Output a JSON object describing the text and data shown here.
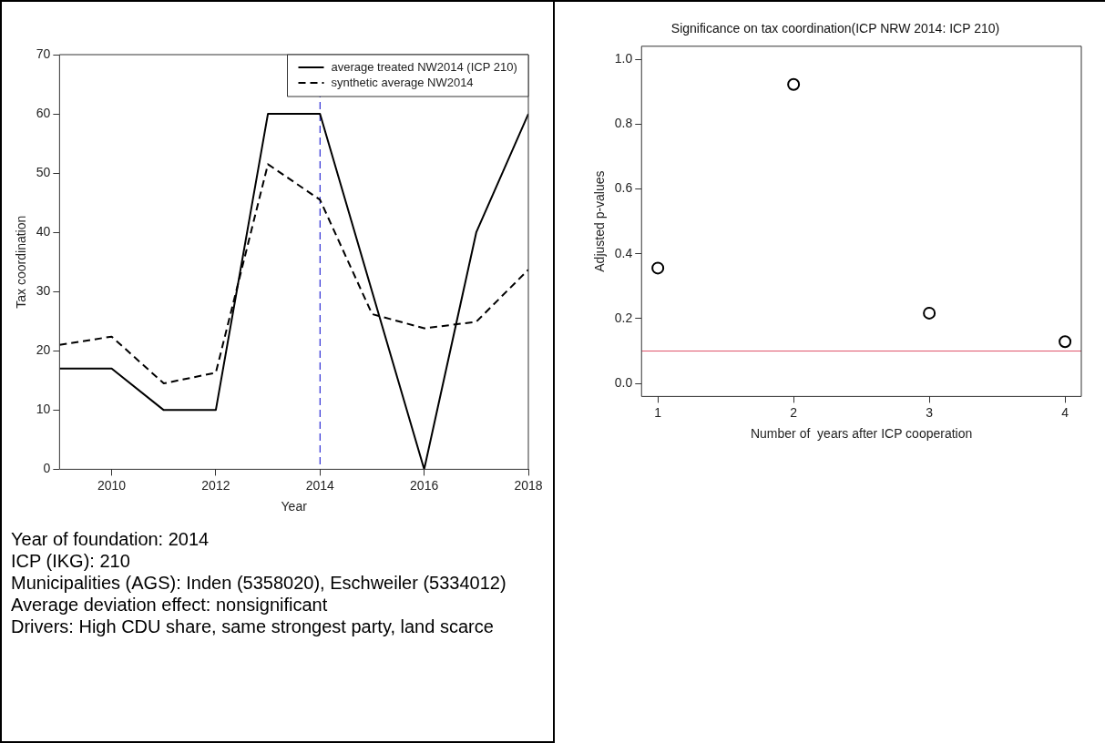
{
  "chart_data": [
    {
      "type": "line",
      "xlabel": "Year",
      "ylabel": "Tax coordination",
      "x": [
        2009,
        2010,
        2011,
        2012,
        2013,
        2014,
        2015,
        2016,
        2017,
        2018
      ],
      "series": [
        {
          "name": "average treated NW2014 (ICP 210)",
          "color": "#000000",
          "line_style": "solid",
          "values": [
            17,
            17,
            10,
            10,
            60,
            60,
            30,
            0,
            40,
            60
          ]
        },
        {
          "name": "synthetic average NW2014",
          "color": "#000000",
          "line_style": "dashed",
          "values": [
            21,
            22.4,
            14.5,
            16.3,
            51.5,
            45.5,
            26.2,
            23.8,
            24.9,
            33.7
          ]
        }
      ],
      "xlim": [
        2009,
        2018
      ],
      "xticks": [
        2010,
        2012,
        2014,
        2016,
        2018
      ],
      "ylim": [
        0,
        70
      ],
      "yticks": [
        0,
        10,
        20,
        30,
        40,
        50,
        60,
        70
      ],
      "ref_lines": [
        {
          "axis": "x",
          "value": 2014,
          "color": "#0000cc",
          "line_style": "dashed"
        }
      ],
      "legend": "top right",
      "marker": "none",
      "annotations": [
        "Year of foundation: 2014",
        "ICP (IKG): 210",
        "Municipalities (AGS): Inden (5358020), Eschweiler (5334012)",
        "Average deviation effect: nonsignificant",
        "Drivers: High CDU share, same strongest party, land scarce"
      ]
    },
    {
      "type": "scatter",
      "title": "Significance on tax coordination(ICP NRW 2014: ICP 210)",
      "xlabel": "Number of  years after ICP cooperation",
      "ylabel": "Adjusted p-values",
      "x": [
        1,
        2,
        3,
        4
      ],
      "series": [
        {
          "color": "#000000",
          "values": [
            0.356,
            0.922,
            0.217,
            0.129
          ]
        }
      ],
      "xlim": [
        0.88,
        4.12
      ],
      "xticks": [
        1,
        2,
        3,
        4
      ],
      "ylim": [
        -0.04,
        1.04
      ],
      "yticks": [
        {
          "value": 0,
          "label": "0.0"
        },
        0.2,
        0.4,
        0.6,
        0.8,
        {
          "value": 1,
          "label": "1.0"
        }
      ],
      "ref_lines": [
        {
          "axis": "y",
          "value": 0.1,
          "color": "#df536b",
          "line_style": "solid"
        }
      ],
      "marker": "circle"
    }
  ]
}
